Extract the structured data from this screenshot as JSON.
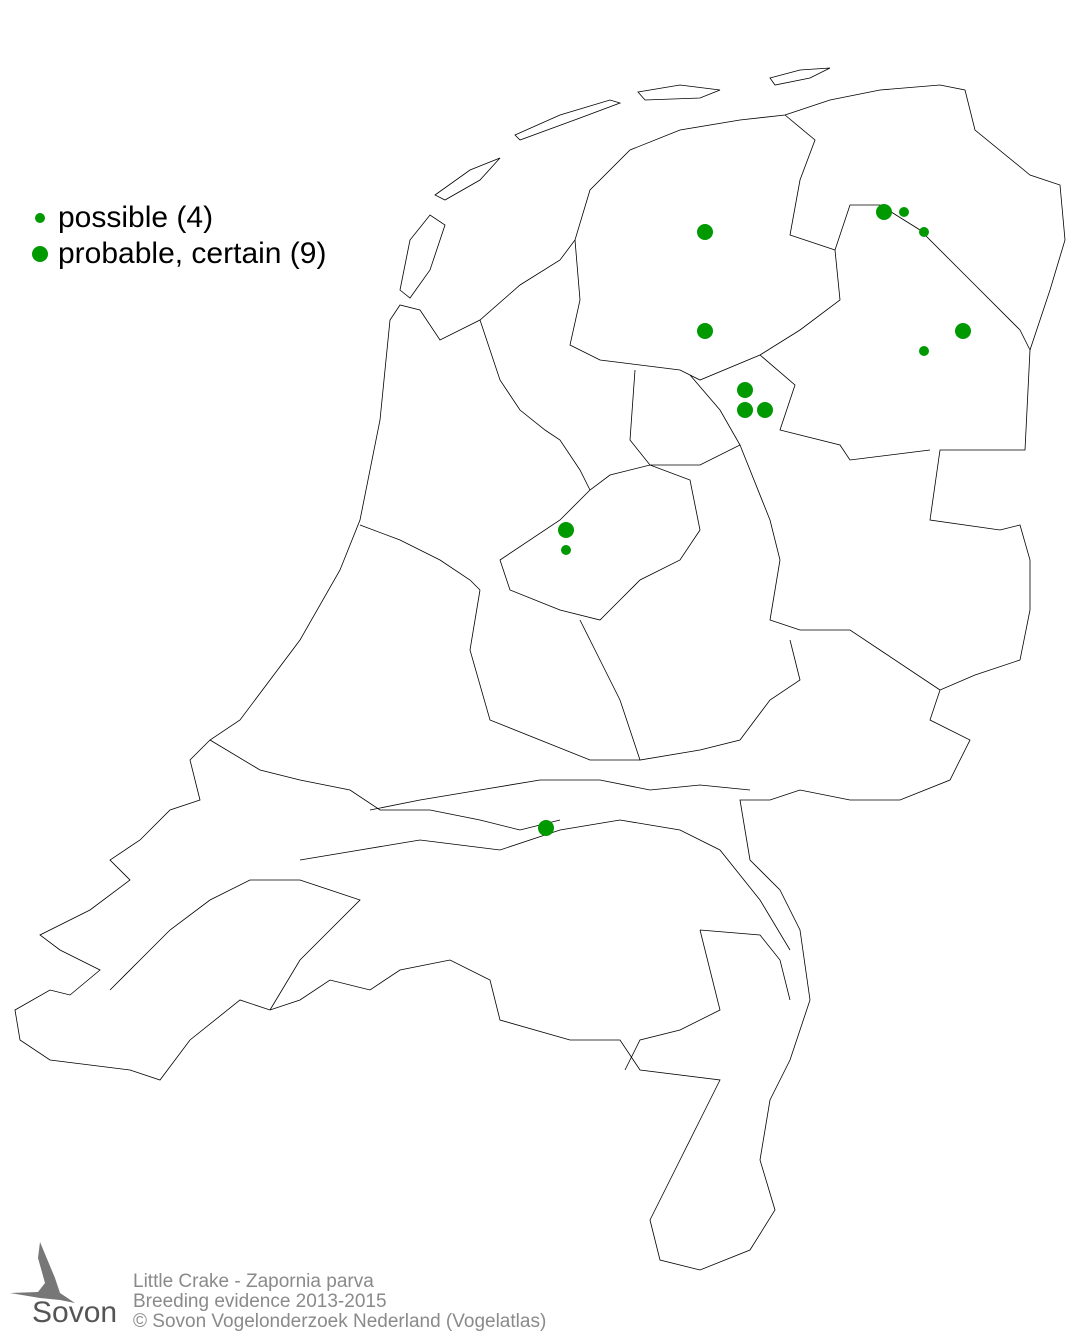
{
  "legend": {
    "items": [
      {
        "label": "possible (4)",
        "color": "#009900",
        "size": "small"
      },
      {
        "label": "probable, certain (9)",
        "color": "#009900",
        "size": "large"
      }
    ]
  },
  "footer": {
    "line1": "Little Crake - Zapornia parva",
    "line2": "Breeding evidence 2013-2015",
    "line3": "© Sovon Vogelonderzoek Nederland (Vogelatlas)"
  },
  "logo": {
    "text": "Sovon"
  },
  "map": {
    "country": "Netherlands",
    "point_color": "#009900"
  }
}
